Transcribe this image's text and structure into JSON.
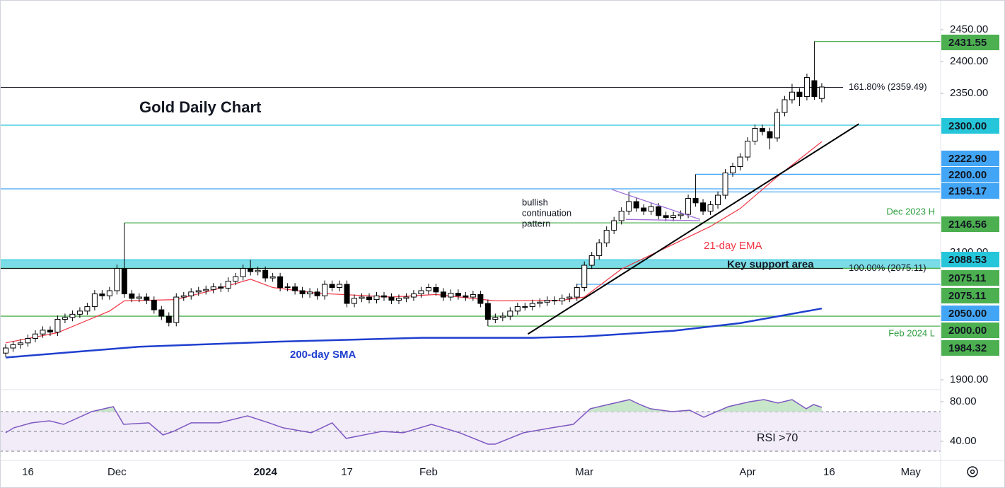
{
  "chart_data": {
    "type": "candlestick",
    "title": "Gold Daily Chart",
    "categories": [
      null,
      null,
      null,
      "16",
      null,
      null,
      null,
      null,
      null,
      null,
      null,
      null,
      null,
      null,
      null,
      "Dec",
      null,
      null,
      null,
      null,
      null,
      null,
      null,
      null,
      null,
      null,
      null,
      null,
      null,
      null,
      null,
      null,
      null,
      null,
      null,
      "2024",
      null,
      null,
      null,
      null,
      null,
      null,
      null,
      null,
      null,
      null,
      "17",
      null,
      null,
      null,
      null,
      null,
      null,
      null,
      null,
      null,
      null,
      "Feb",
      null,
      null,
      null,
      null,
      null,
      null,
      null,
      null,
      null,
      null,
      null,
      null,
      null,
      null,
      null,
      null,
      null,
      null,
      null,
      null,
      "Mar",
      null,
      null,
      null,
      null,
      null,
      null,
      null,
      null,
      null,
      null,
      null,
      null,
      null,
      null,
      null,
      null,
      null,
      null,
      null,
      null,
      null,
      "Apr",
      null,
      null,
      null,
      null,
      null,
      null,
      null,
      null,
      null,
      null,
      "16",
      null,
      null,
      null,
      null,
      null,
      null,
      null,
      null,
      null,
      null,
      "May"
    ],
    "open": [
      1942,
      1950,
      1955,
      1958,
      1965,
      1972,
      1978,
      1975,
      1995,
      1998,
      2003,
      2008,
      2015,
      2035,
      2032,
      2040,
      2075,
      2035,
      2028,
      2030,
      2025,
      2010,
      2000,
      1990,
      2030,
      2032,
      2038,
      2040,
      2042,
      2046,
      2044,
      2055,
      2062,
      2075,
      2070,
      2072,
      2060,
      2062,
      2045,
      2046,
      2040,
      2035,
      2038,
      2032,
      2050,
      2045,
      2050,
      2020,
      2028,
      2030,
      2026,
      2032,
      2030,
      2025,
      2028,
      2030,
      2035,
      2040,
      2045,
      2038,
      2030,
      2036,
      2032,
      2030,
      2034,
      2020,
      1995,
      1998,
      2000,
      2008,
      2015,
      2015,
      2020,
      2022,
      2025,
      2024,
      2028,
      2030,
      2045,
      2080,
      2095,
      2115,
      2135,
      2150,
      2165,
      2180,
      2170,
      2165,
      2172,
      2158,
      2155,
      2158,
      2160,
      2185,
      2178,
      2165,
      2175,
      2190,
      2225,
      2235,
      2250,
      2275,
      2295,
      2290,
      2280,
      2320,
      2340,
      2352,
      2345,
      2370,
      2342,
      null,
      null,
      null,
      null,
      null,
      null,
      null,
      null,
      null,
      null,
      null,
      null
    ],
    "high": [
      1956,
      1961,
      1964,
      1971,
      1978,
      1984,
      1984,
      2001,
      2004,
      2009,
      2014,
      2021,
      2041,
      2041,
      2046,
      2081,
      2146.56,
      2041,
      2036,
      2036,
      2031,
      2016,
      2006,
      2036,
      2038,
      2044,
      2046,
      2048,
      2052,
      2052,
      2061,
      2068,
      2081,
      2088.53,
      2078,
      2078,
      2068,
      2068,
      2052,
      2052,
      2046,
      2044,
      2044,
      2056,
      2056,
      2056,
      2056,
      2034,
      2036,
      2036,
      2038,
      2038,
      2036,
      2034,
      2036,
      2041,
      2046,
      2051,
      2051,
      2044,
      2042,
      2042,
      2038,
      2040,
      2040,
      2026,
      2004,
      2006,
      2014,
      2021,
      2021,
      2026,
      2028,
      2031,
      2031,
      2034,
      2036,
      2051,
      2086,
      2101,
      2121,
      2141,
      2156,
      2171,
      2195.17,
      2186,
      2176,
      2178,
      2178,
      2164,
      2164,
      2166,
      2191,
      2222.9,
      2184,
      2181,
      2196,
      2231,
      2241,
      2256,
      2281,
      2301,
      2301,
      2296,
      2326,
      2346,
      2365,
      2358,
      2381,
      2431.55,
      2366,
      null,
      null,
      null,
      null,
      null,
      null,
      null,
      null,
      null,
      null,
      null,
      null
    ],
    "low": [
      1936,
      1944,
      1949,
      1952,
      1959,
      1966,
      1969,
      1969,
      1989,
      1992,
      1997,
      2002,
      2009,
      2026,
      2026,
      2034,
      2029,
      2022,
      2022,
      2019,
      2004,
      1994,
      1984,
      1984,
      2024,
      2026,
      2032,
      2034,
      2036,
      2038,
      2038,
      2049,
      2056,
      2064,
      2064,
      2054,
      2054,
      2039,
      2039,
      2034,
      2029,
      2029,
      2026,
      2026,
      2039,
      2039,
      2014,
      2014,
      2022,
      2020,
      2020,
      2024,
      2019,
      2019,
      2022,
      2024,
      2029,
      2034,
      2032,
      2024,
      2024,
      2026,
      2024,
      2024,
      2014,
      1984.32,
      1989,
      1992,
      1994,
      2002,
      2009,
      2009,
      2014,
      2016,
      2018,
      2018,
      2022,
      2024,
      2039,
      2074,
      2089,
      2109,
      2129,
      2144,
      2159,
      2164,
      2159,
      2159,
      2152,
      2149,
      2149,
      2152,
      2154,
      2172,
      2159,
      2159,
      2169,
      2184,
      2219,
      2229,
      2244,
      2269,
      2284,
      2262,
      2274,
      2314,
      2334,
      2330,
      2339,
      2340,
      2336,
      null,
      null,
      null,
      null,
      null,
      null,
      null,
      null,
      null,
      null,
      null,
      null
    ],
    "close": [
      1950,
      1955,
      1958,
      1965,
      1972,
      1978,
      1975,
      1995,
      1998,
      2003,
      2008,
      2015,
      2035,
      2032,
      2040,
      2075,
      2035,
      2028,
      2030,
      2025,
      2010,
      2000,
      1990,
      2030,
      2032,
      2038,
      2040,
      2042,
      2046,
      2044,
      2055,
      2062,
      2075,
      2070,
      2072,
      2060,
      2062,
      2045,
      2046,
      2040,
      2035,
      2038,
      2032,
      2050,
      2045,
      2050,
      2020,
      2028,
      2030,
      2026,
      2032,
      2030,
      2025,
      2028,
      2030,
      2035,
      2040,
      2045,
      2038,
      2030,
      2036,
      2032,
      2030,
      2034,
      2020,
      1995,
      1998,
      2000,
      2008,
      2015,
      2015,
      2020,
      2022,
      2025,
      2024,
      2028,
      2030,
      2045,
      2080,
      2095,
      2115,
      2135,
      2150,
      2165,
      2180,
      2170,
      2165,
      2172,
      2158,
      2155,
      2158,
      2160,
      2185,
      2178,
      2165,
      2175,
      2190,
      2225,
      2235,
      2250,
      2275,
      2295,
      2290,
      2280,
      2320,
      2340,
      2352,
      2345,
      2375,
      2345,
      2360,
      null,
      null,
      null,
      null,
      null,
      null,
      null,
      null,
      null,
      null,
      null,
      null
    ],
    "up_color": "#ffffff",
    "down_color": "#000000",
    "ylim": [
      1885.6,
      2496.7
    ],
    "yticks": [
      {
        "value": 1900,
        "label": "1900.00"
      },
      {
        "value": 2100,
        "label": "2100.00"
      },
      {
        "value": 2350,
        "label": "2350.00"
      },
      {
        "value": 2400,
        "label": "2400.00"
      },
      {
        "value": 2450,
        "label": "2450.00"
      }
    ],
    "overlays": [
      {
        "name": "200-day SMA",
        "color": "#1f3fcf",
        "x": [
          0,
          18,
          37,
          56,
          71,
          78,
          90,
          99,
          110
        ],
        "values": [
          1935,
          1952,
          1960,
          1966,
          1966,
          1968,
          1977,
          1989,
          2012
        ]
      },
      {
        "name": "21-day EMA",
        "color": "#f23645",
        "x": [
          0,
          7,
          14,
          16,
          23,
          28,
          33,
          36,
          42,
          52,
          58,
          66,
          75,
          78,
          83,
          90,
          95,
          99,
          104,
          110
        ],
        "values": [
          1958,
          1974,
          2008,
          2024,
          2026,
          2041,
          2058,
          2045,
          2036,
          2030,
          2034,
          2024,
          2025,
          2030,
          2074,
          2113,
          2141,
          2169,
          2219,
          2274
        ]
      }
    ],
    "trendline": {
      "color": "#000000",
      "x": [
        70.4,
        115
      ],
      "values": [
        1972,
        2302
      ]
    },
    "pattern": {
      "label": [
        "bullish",
        "continuation",
        "pattern"
      ],
      "color": "#9c6fd6",
      "upper": {
        "x": [
          81.7,
          93.6
        ],
        "values": [
          2199,
          2152
        ]
      },
      "lower": {
        "x": [
          83.6,
          93.6
        ],
        "values": [
          2152,
          2150
        ]
      }
    },
    "support_zone": {
      "label": "Key support area",
      "range": [
        2075.11,
        2088.53
      ],
      "color": "#4fd0e0"
    },
    "fib": [
      {
        "value": 2359.49,
        "label": "161.80% (2359.49)"
      },
      {
        "value": 2075.11,
        "label": "100.00% (2075.11)"
      }
    ],
    "levels": [
      {
        "value": 2431.55,
        "label": "2431.55",
        "color": "#4caf50",
        "start": 109
      },
      {
        "value": 2300,
        "label": "2300.00",
        "color": "#26c6da"
      },
      {
        "value": 2222.9,
        "label": "2222.90",
        "color": "#42a5f5",
        "start": 93
      },
      {
        "value": 2200,
        "label": "2200.00",
        "color": "#42a5f5"
      },
      {
        "value": 2195.17,
        "label": "2195.17",
        "color": "#42a5f5",
        "start": 84
      },
      {
        "value": 2146.56,
        "label": "2146.56",
        "color": "#4caf50",
        "start": 16,
        "note": "Dec 2023 H"
      },
      {
        "value": 2088.53,
        "label": "2088.53",
        "color": "#26c6da"
      },
      {
        "value": 2075.11,
        "label": "2075.11",
        "color": "#4caf50"
      },
      {
        "value": 2075.11,
        "label": "2075.11",
        "color": "#4caf50"
      },
      {
        "value": 2050,
        "label": "2050.00",
        "color": "#42a5f5",
        "start": 77
      },
      {
        "value": 2000,
        "label": "2000.00",
        "color": "#4caf50"
      },
      {
        "value": 1984.32,
        "label": "1984.32",
        "color": "#4caf50",
        "start": 65,
        "note": "Feb 2024 L"
      }
    ],
    "rsi": {
      "label": "RSI >70",
      "color": "#7e57c2",
      "ylim": [
        21.4,
        91.4
      ],
      "yticks": [
        {
          "value": 40,
          "label": "40.00"
        },
        {
          "value": 80,
          "label": "80.00"
        }
      ],
      "bands": [
        30,
        50,
        70
      ],
      "x": [
        0,
        1.1,
        3.5,
        5.9,
        7.8,
        11.6,
        14.5,
        15.9,
        19.3,
        21.2,
        22.6,
        25,
        28.8,
        32.6,
        35.5,
        37.4,
        41.2,
        44,
        45.9,
        50.7,
        53.6,
        57.4,
        61.2,
        65,
        66,
        69.8,
        73.6,
        76.5,
        78.8,
        81.2,
        84.1,
        85.5,
        86.9,
        89.8,
        92.2,
        94.1,
        97.4,
        100.3,
        102.2,
        104.1,
        106,
        107.9,
        108.9,
        110
      ],
      "values": [
        48.6,
        53.6,
        58.6,
        60.7,
        57.1,
        70,
        75,
        57.1,
        58.6,
        46.4,
        50,
        58.6,
        58.6,
        65.7,
        58.6,
        53.6,
        48.6,
        58.6,
        42.9,
        50,
        48.6,
        57.1,
        48.6,
        37.1,
        37.1,
        48.6,
        53.6,
        57.1,
        72.9,
        77.1,
        82.1,
        77.1,
        72.9,
        70,
        71.4,
        64.3,
        75,
        80,
        82.1,
        78.6,
        82.1,
        72.9,
        77.1,
        74.3
      ]
    }
  }
}
